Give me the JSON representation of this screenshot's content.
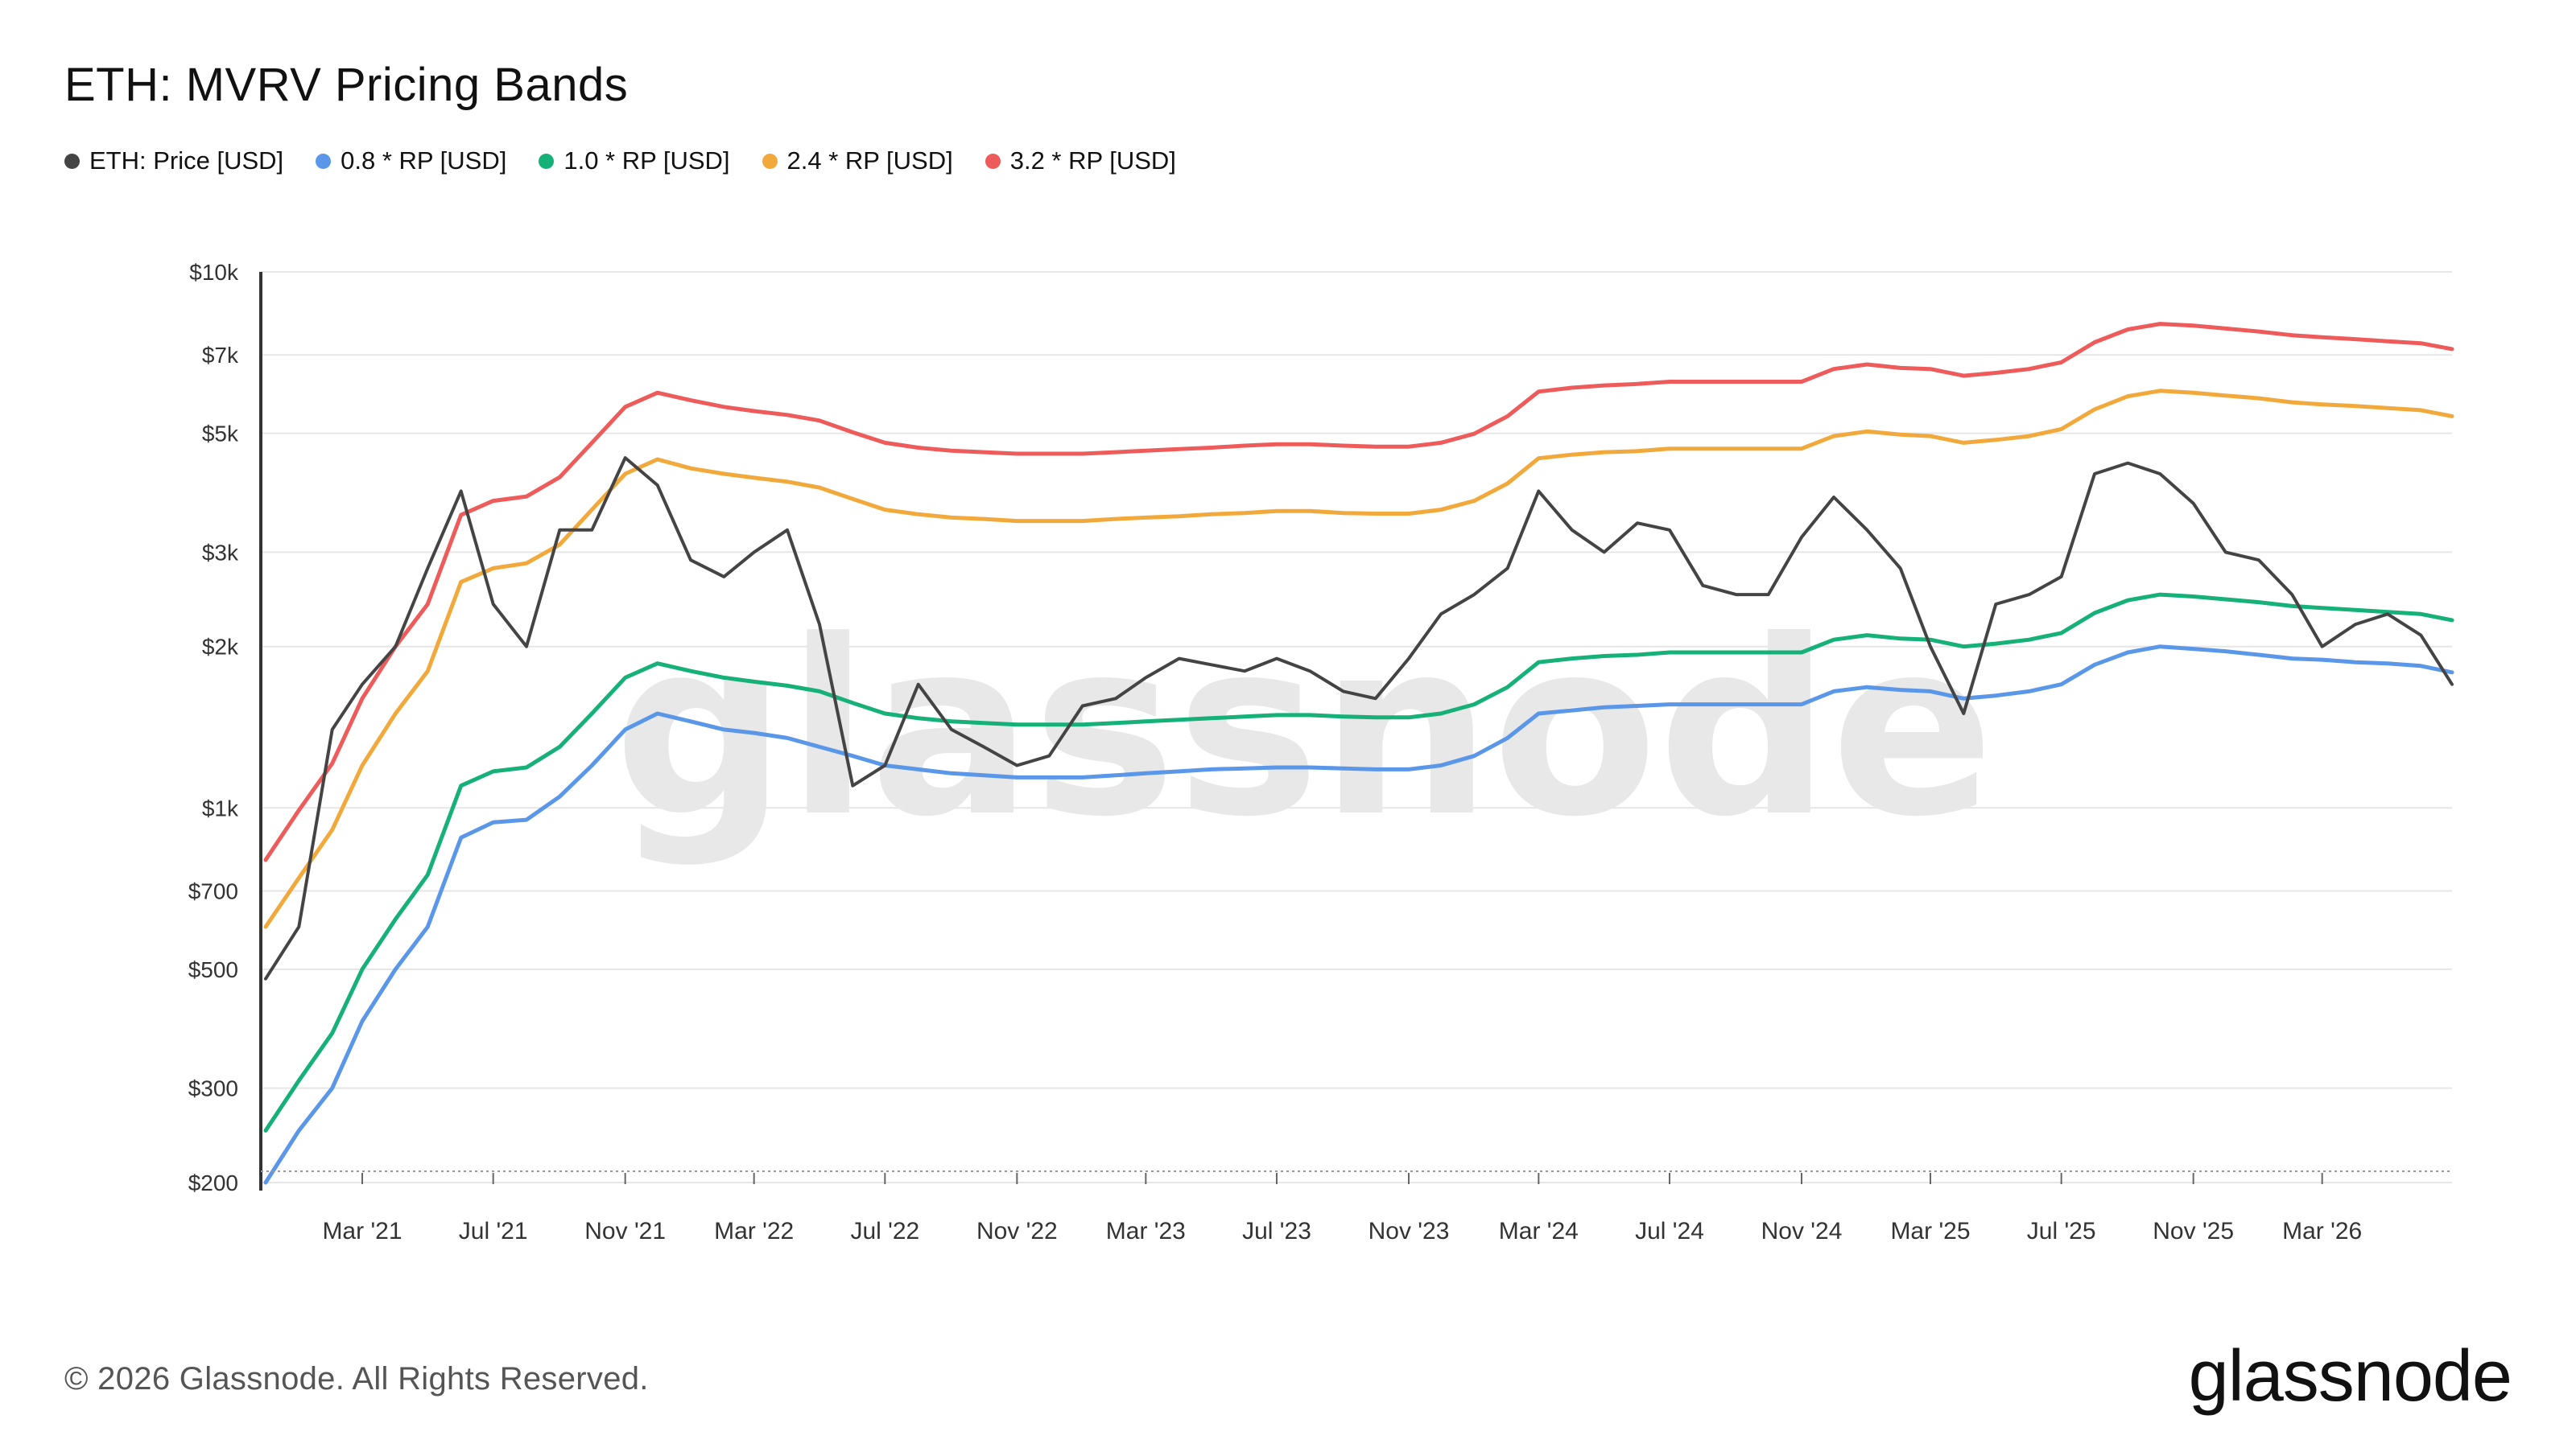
{
  "header": {
    "title": "ETH: MVRV Pricing Bands"
  },
  "chart_data": {
    "type": "line",
    "title": "ETH: MVRV Pricing Bands",
    "xlabel": "",
    "ylabel": "",
    "y_scale": "log",
    "ylim": [
      200,
      10000
    ],
    "xlim": [
      "2020-12-01",
      "2026-06-30"
    ],
    "grid": true,
    "legend_position": "top-left",
    "y_ticks": [
      {
        "value": 10000,
        "label": "$10k"
      },
      {
        "value": 7000,
        "label": "$7k"
      },
      {
        "value": 5000,
        "label": "$5k"
      },
      {
        "value": 3000,
        "label": "$3k"
      },
      {
        "value": 2000,
        "label": "$2k"
      },
      {
        "value": 1000,
        "label": "$1k"
      },
      {
        "value": 700,
        "label": "$700"
      },
      {
        "value": 500,
        "label": "$500"
      },
      {
        "value": 300,
        "label": "$300"
      },
      {
        "value": 200,
        "label": "$200"
      }
    ],
    "x_ticks": [
      {
        "date": "2021-03-01",
        "label": "Mar '21"
      },
      {
        "date": "2021-07-01",
        "label": "Jul '21"
      },
      {
        "date": "2021-11-01",
        "label": "Nov '21"
      },
      {
        "date": "2022-03-01",
        "label": "Mar '22"
      },
      {
        "date": "2022-07-01",
        "label": "Jul '22"
      },
      {
        "date": "2022-11-01",
        "label": "Nov '22"
      },
      {
        "date": "2023-03-01",
        "label": "Mar '23"
      },
      {
        "date": "2023-07-01",
        "label": "Jul '23"
      },
      {
        "date": "2023-11-01",
        "label": "Nov '23"
      },
      {
        "date": "2024-03-01",
        "label": "Mar '24"
      },
      {
        "date": "2024-07-01",
        "label": "Jul '24"
      },
      {
        "date": "2024-11-01",
        "label": "Nov '24"
      },
      {
        "date": "2025-03-01",
        "label": "Mar '25"
      },
      {
        "date": "2025-07-01",
        "label": "Jul '25"
      },
      {
        "date": "2025-11-01",
        "label": "Nov '25"
      },
      {
        "date": "2026-03-01",
        "label": "Mar '26"
      }
    ],
    "x": [
      "2020-12-01",
      "2021-01-01",
      "2021-02-01",
      "2021-03-01",
      "2021-04-01",
      "2021-05-01",
      "2021-06-01",
      "2021-07-01",
      "2021-08-01",
      "2021-09-01",
      "2021-10-01",
      "2021-11-01",
      "2021-12-01",
      "2022-01-01",
      "2022-02-01",
      "2022-03-01",
      "2022-04-01",
      "2022-05-01",
      "2022-06-01",
      "2022-07-01",
      "2022-08-01",
      "2022-09-01",
      "2022-10-01",
      "2022-11-01",
      "2022-12-01",
      "2023-01-01",
      "2023-02-01",
      "2023-03-01",
      "2023-04-01",
      "2023-05-01",
      "2023-06-01",
      "2023-07-01",
      "2023-08-01",
      "2023-09-01",
      "2023-10-01",
      "2023-11-01",
      "2023-12-01",
      "2024-01-01",
      "2024-02-01",
      "2024-03-01",
      "2024-04-01",
      "2024-05-01",
      "2024-06-01",
      "2024-07-01",
      "2024-08-01",
      "2024-09-01",
      "2024-10-01",
      "2024-11-01",
      "2024-12-01",
      "2025-01-01",
      "2025-02-01",
      "2025-03-01",
      "2025-04-01",
      "2025-05-01",
      "2025-06-01",
      "2025-07-01",
      "2025-08-01",
      "2025-09-01",
      "2025-10-01",
      "2025-11-01",
      "2025-12-01",
      "2026-01-01",
      "2026-02-01",
      "2026-03-01",
      "2026-04-01",
      "2026-05-01",
      "2026-06-01",
      "2026-06-30"
    ],
    "series": [
      {
        "name": "ETH: Price [USD]",
        "color": "#444444",
        "values": [
          480,
          600,
          1400,
          1700,
          2000,
          2800,
          3900,
          2400,
          2000,
          3300,
          3300,
          4500,
          4000,
          2900,
          2700,
          3000,
          3300,
          2200,
          1100,
          1200,
          1700,
          1400,
          1300,
          1200,
          1250,
          1550,
          1600,
          1750,
          1900,
          1850,
          1800,
          1900,
          1800,
          1650,
          1600,
          1900,
          2300,
          2500,
          2800,
          3900,
          3300,
          3000,
          3400,
          3300,
          2600,
          2500,
          2500,
          3200,
          3800,
          3300,
          2800,
          2000,
          1500,
          2400,
          2500,
          2700,
          4200,
          4400,
          4200,
          3700,
          3000,
          2900,
          2500,
          2000,
          2200,
          2300,
          2100,
          1700
        ]
      },
      {
        "name": "0.8 * RP [USD]",
        "color": "#5b97e8",
        "values": [
          200,
          250,
          300,
          400,
          500,
          600,
          880,
          940,
          950,
          1050,
          1200,
          1400,
          1500,
          1450,
          1400,
          1380,
          1350,
          1300,
          1250,
          1200,
          1180,
          1160,
          1150,
          1140,
          1140,
          1140,
          1150,
          1160,
          1170,
          1180,
          1185,
          1190,
          1190,
          1185,
          1180,
          1180,
          1200,
          1250,
          1350,
          1500,
          1520,
          1540,
          1550,
          1560,
          1560,
          1560,
          1560,
          1560,
          1650,
          1680,
          1660,
          1650,
          1600,
          1620,
          1650,
          1700,
          1850,
          1950,
          2000,
          1980,
          1960,
          1930,
          1900,
          1890,
          1870,
          1860,
          1840,
          1790
        ]
      },
      {
        "name": "1.0 * RP [USD]",
        "color": "#16b079",
        "values": [
          250,
          310,
          380,
          500,
          620,
          750,
          1100,
          1170,
          1190,
          1300,
          1500,
          1750,
          1860,
          1800,
          1750,
          1720,
          1690,
          1650,
          1570,
          1500,
          1470,
          1450,
          1440,
          1430,
          1430,
          1430,
          1440,
          1450,
          1460,
          1470,
          1480,
          1490,
          1490,
          1480,
          1475,
          1475,
          1500,
          1560,
          1680,
          1870,
          1900,
          1920,
          1930,
          1950,
          1950,
          1950,
          1950,
          1950,
          2060,
          2100,
          2070,
          2060,
          2000,
          2025,
          2060,
          2120,
          2310,
          2440,
          2500,
          2480,
          2450,
          2420,
          2380,
          2360,
          2340,
          2320,
          2300,
          2240
        ]
      },
      {
        "name": "2.4 * RP [USD]",
        "color": "#f2a93b",
        "values": [
          600,
          740,
          910,
          1200,
          1500,
          1800,
          2640,
          2800,
          2860,
          3100,
          3600,
          4200,
          4470,
          4300,
          4200,
          4130,
          4060,
          3960,
          3770,
          3600,
          3530,
          3480,
          3460,
          3430,
          3430,
          3430,
          3460,
          3480,
          3500,
          3530,
          3550,
          3580,
          3580,
          3550,
          3540,
          3540,
          3600,
          3740,
          4030,
          4490,
          4560,
          4610,
          4630,
          4680,
          4680,
          4680,
          4680,
          4680,
          4940,
          5040,
          4970,
          4940,
          4800,
          4860,
          4940,
          5090,
          5540,
          5860,
          6000,
          5950,
          5880,
          5810,
          5710,
          5660,
          5620,
          5570,
          5520,
          5380
        ]
      },
      {
        "name": "3.2 * RP [USD]",
        "color": "#ee5b5b",
        "values": [
          800,
          990,
          1210,
          1600,
          2000,
          2400,
          3520,
          3740,
          3810,
          4140,
          4800,
          5600,
          5950,
          5760,
          5600,
          5500,
          5410,
          5280,
          5020,
          4800,
          4700,
          4640,
          4610,
          4580,
          4580,
          4580,
          4610,
          4640,
          4670,
          4700,
          4740,
          4770,
          4770,
          4740,
          4720,
          4720,
          4800,
          4990,
          5380,
          5980,
          6080,
          6140,
          6180,
          6240,
          6240,
          6240,
          6240,
          6240,
          6590,
          6720,
          6620,
          6590,
          6400,
          6480,
          6590,
          6780,
          7390,
          7810,
          8000,
          7940,
          7840,
          7740,
          7620,
          7550,
          7490,
          7420,
          7360,
          7180
        ]
      }
    ]
  },
  "watermark": {
    "text": "glassnode"
  },
  "footer": {
    "copyright": "© 2026 Glassnode. All Rights Reserved.",
    "brand": "glassnode"
  }
}
